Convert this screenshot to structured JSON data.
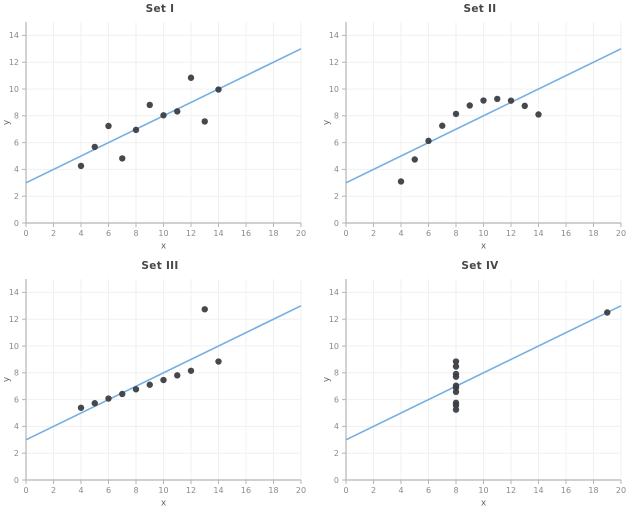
{
  "chart_style": {
    "line_color": "#74aee2",
    "point_color": "#3b3e43",
    "grid_color": "#f0f0f0",
    "axis_color": "#b5b5b5",
    "tick_label_color": "#8a8a8a",
    "title_color": "#474747",
    "axis_label_color": "#666666",
    "background": "#ffffff"
  },
  "chart_data": [
    {
      "type": "scatter",
      "title": "Set I",
      "xlabel": "x",
      "ylabel": "y",
      "xlim": [
        0,
        20
      ],
      "ylim": [
        0,
        15
      ],
      "xticks": [
        0,
        2,
        4,
        6,
        8,
        10,
        12,
        14,
        16,
        18,
        20
      ],
      "yticks": [
        0,
        2,
        4,
        6,
        8,
        10,
        12,
        14
      ],
      "grid": true,
      "x": [
        10,
        8,
        13,
        9,
        11,
        14,
        6,
        4,
        12,
        7,
        5
      ],
      "y": [
        8.04,
        6.95,
        7.58,
        8.81,
        8.33,
        9.96,
        7.24,
        4.26,
        10.84,
        4.82,
        5.68
      ],
      "trend_line": {
        "x": [
          0,
          20
        ],
        "y": [
          3,
          13
        ]
      }
    },
    {
      "type": "scatter",
      "title": "Set II",
      "xlabel": "x",
      "ylabel": "y",
      "xlim": [
        0,
        20
      ],
      "ylim": [
        0,
        15
      ],
      "xticks": [
        0,
        2,
        4,
        6,
        8,
        10,
        12,
        14,
        16,
        18,
        20
      ],
      "yticks": [
        0,
        2,
        4,
        6,
        8,
        10,
        12,
        14
      ],
      "grid": true,
      "x": [
        10,
        8,
        13,
        9,
        11,
        14,
        6,
        4,
        12,
        7,
        5
      ],
      "y": [
        9.14,
        8.14,
        8.74,
        8.77,
        9.26,
        8.1,
        6.13,
        3.1,
        9.13,
        7.26,
        4.74
      ],
      "trend_line": {
        "x": [
          0,
          20
        ],
        "y": [
          3,
          13
        ]
      }
    },
    {
      "type": "scatter",
      "title": "Set III",
      "xlabel": "x",
      "ylabel": "y",
      "xlim": [
        0,
        20
      ],
      "ylim": [
        0,
        15
      ],
      "xticks": [
        0,
        2,
        4,
        6,
        8,
        10,
        12,
        14,
        16,
        18,
        20
      ],
      "yticks": [
        0,
        2,
        4,
        6,
        8,
        10,
        12,
        14
      ],
      "grid": true,
      "x": [
        10,
        8,
        13,
        9,
        11,
        14,
        6,
        4,
        12,
        7,
        5
      ],
      "y": [
        7.46,
        6.77,
        12.74,
        7.11,
        7.81,
        8.84,
        6.08,
        5.39,
        8.15,
        6.42,
        5.73
      ],
      "trend_line": {
        "x": [
          0,
          20
        ],
        "y": [
          3,
          13
        ]
      }
    },
    {
      "type": "scatter",
      "title": "Set IV",
      "xlabel": "x",
      "ylabel": "y",
      "xlim": [
        0,
        20
      ],
      "ylim": [
        0,
        15
      ],
      "xticks": [
        0,
        2,
        4,
        6,
        8,
        10,
        12,
        14,
        16,
        18,
        20
      ],
      "yticks": [
        0,
        2,
        4,
        6,
        8,
        10,
        12,
        14
      ],
      "grid": true,
      "x": [
        8,
        8,
        8,
        8,
        8,
        8,
        8,
        19,
        8,
        8,
        8
      ],
      "y": [
        6.58,
        5.76,
        7.71,
        8.84,
        8.47,
        7.04,
        5.25,
        12.5,
        5.56,
        7.91,
        6.89
      ],
      "trend_line": {
        "x": [
          0,
          20
        ],
        "y": [
          3,
          13
        ]
      }
    }
  ]
}
